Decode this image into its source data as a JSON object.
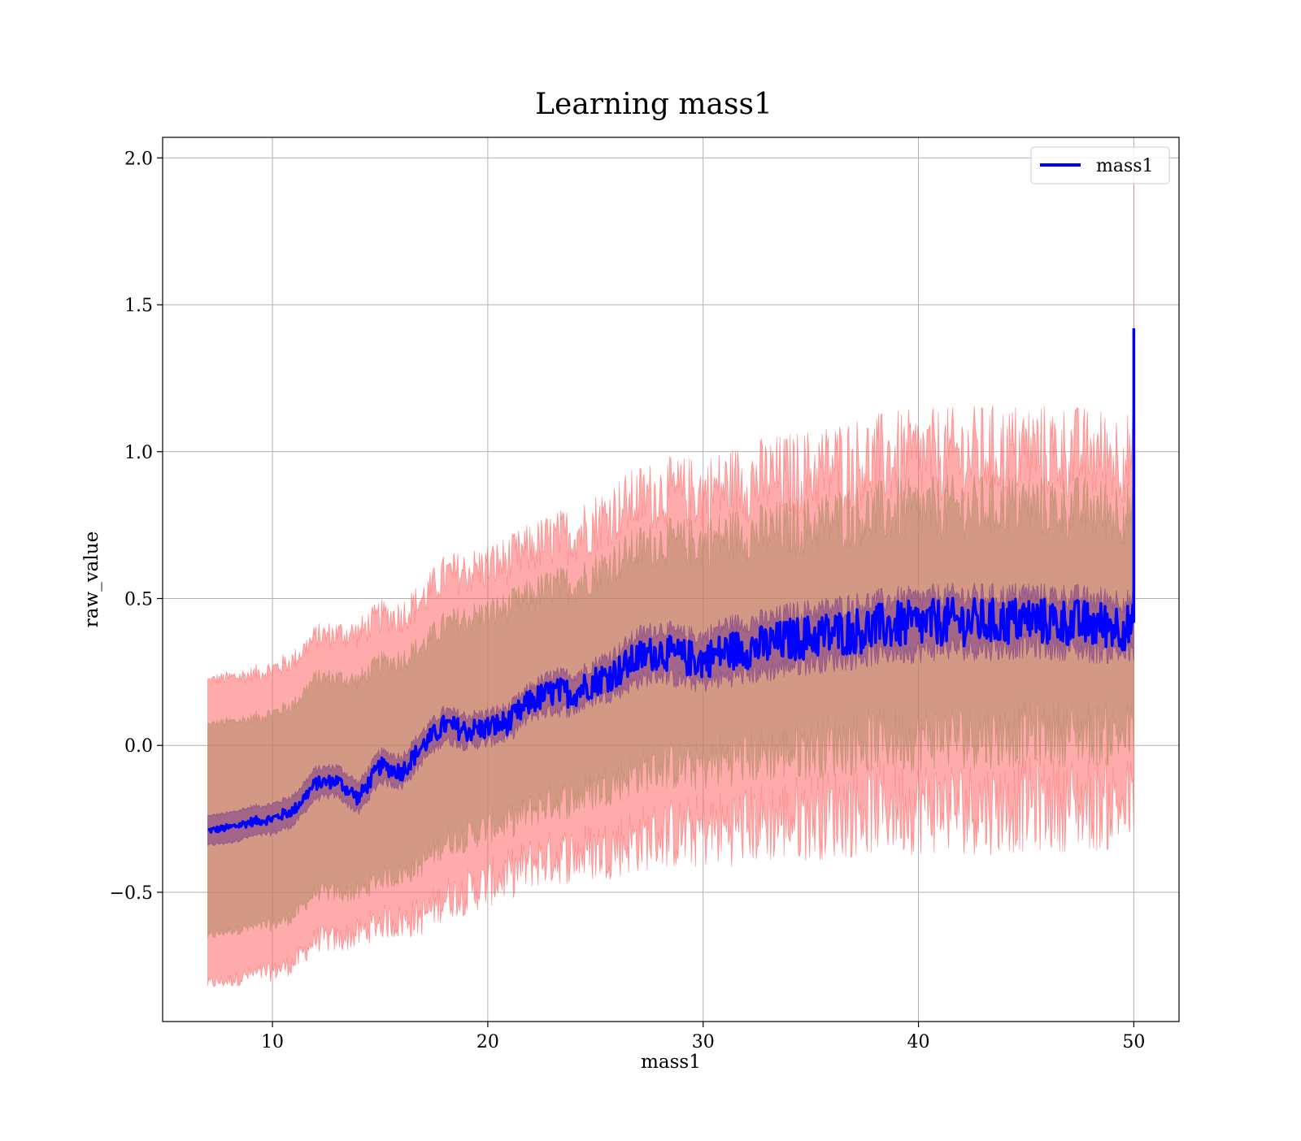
{
  "chart_data": {
    "type": "line",
    "title": "Learning mass1",
    "xlabel": "mass1",
    "ylabel": "raw_value",
    "xlim": [
      4.9,
      52.1
    ],
    "ylim": [
      -0.94,
      2.07
    ],
    "x_ticks": [
      10,
      20,
      30,
      40,
      50
    ],
    "x_tick_labels": [
      "10",
      "20",
      "30",
      "40",
      "50"
    ],
    "y_ticks": [
      -0.5,
      0.0,
      0.5,
      1.0,
      1.5,
      2.0
    ],
    "y_tick_labels": [
      "−0.5",
      "0.0",
      "0.5",
      "1.0",
      "1.5",
      "2.0"
    ],
    "grid": true,
    "legend": {
      "position": "top-right",
      "entries": [
        "mass1"
      ]
    },
    "colors": {
      "line": "#0000ff",
      "outer_band": "#ff6666",
      "inner_band": "#b08a66",
      "core_band": "#7a3d8a",
      "grid": "#b0b0b0"
    },
    "series": [
      {
        "name": "mass1",
        "x": [
          7,
          8,
          9,
          10,
          11,
          12,
          13,
          14,
          15,
          16,
          17,
          18,
          19,
          20,
          21,
          22,
          23,
          24,
          25,
          26,
          27,
          28,
          29,
          30,
          31,
          32,
          33,
          34,
          35,
          36,
          37,
          38,
          39,
          40,
          41,
          42,
          43,
          44,
          45,
          46,
          47,
          48,
          49,
          50
        ],
        "y": [
          -0.29,
          -0.28,
          -0.26,
          -0.25,
          -0.22,
          -0.13,
          -0.12,
          -0.18,
          -0.07,
          -0.09,
          0.0,
          0.07,
          0.05,
          0.06,
          0.08,
          0.15,
          0.18,
          0.18,
          0.22,
          0.25,
          0.3,
          0.32,
          0.3,
          0.29,
          0.32,
          0.33,
          0.34,
          0.36,
          0.37,
          0.38,
          0.39,
          0.4,
          0.41,
          0.41,
          0.42,
          0.42,
          0.42,
          0.42,
          0.43,
          0.42,
          0.42,
          0.41,
          0.41,
          0.4
        ]
      }
    ],
    "bands": [
      {
        "level": "outer",
        "x": [
          7,
          8,
          9,
          10,
          11,
          12,
          13,
          14,
          15,
          16,
          17,
          18,
          19,
          20,
          21,
          22,
          23,
          24,
          25,
          26,
          27,
          28,
          29,
          30,
          31,
          32,
          33,
          34,
          35,
          36,
          37,
          38,
          39,
          40,
          41,
          42,
          43,
          44,
          45,
          46,
          47,
          48,
          49,
          50
        ],
        "lower": [
          -0.81,
          -0.8,
          -0.78,
          -0.77,
          -0.74,
          -0.66,
          -0.66,
          -0.64,
          -0.6,
          -0.6,
          -0.58,
          -0.52,
          -0.5,
          -0.47,
          -0.44,
          -0.4,
          -0.38,
          -0.37,
          -0.36,
          -0.34,
          -0.32,
          -0.3,
          -0.3,
          -0.29,
          -0.28,
          -0.27,
          -0.26,
          -0.25,
          -0.24,
          -0.23,
          -0.22,
          -0.21,
          -0.21,
          -0.21,
          -0.21,
          -0.21,
          -0.21,
          -0.21,
          -0.2,
          -0.2,
          -0.2,
          -0.2,
          -0.2,
          -0.2
        ],
        "upper": [
          0.22,
          0.23,
          0.24,
          0.26,
          0.29,
          0.37,
          0.38,
          0.38,
          0.44,
          0.44,
          0.5,
          0.58,
          0.59,
          0.61,
          0.63,
          0.67,
          0.7,
          0.72,
          0.76,
          0.8,
          0.84,
          0.86,
          0.86,
          0.86,
          0.88,
          0.9,
          0.91,
          0.92,
          0.93,
          0.95,
          0.96,
          0.97,
          0.98,
          0.98,
          0.99,
          0.99,
          1.0,
          1.0,
          1.01,
          1.0,
          1.0,
          0.99,
          0.99,
          0.98
        ]
      },
      {
        "level": "inner",
        "x": [
          7,
          8,
          9,
          10,
          11,
          12,
          13,
          14,
          15,
          16,
          17,
          18,
          19,
          20,
          21,
          22,
          23,
          24,
          25,
          26,
          27,
          28,
          29,
          30,
          31,
          32,
          33,
          34,
          35,
          36,
          37,
          38,
          39,
          40,
          41,
          42,
          43,
          44,
          45,
          46,
          47,
          48,
          49,
          50
        ],
        "lower": [
          -0.65,
          -0.63,
          -0.62,
          -0.61,
          -0.58,
          -0.5,
          -0.5,
          -0.5,
          -0.45,
          -0.44,
          -0.4,
          -0.33,
          -0.31,
          -0.28,
          -0.26,
          -0.22,
          -0.19,
          -0.18,
          -0.15,
          -0.12,
          -0.09,
          -0.07,
          -0.07,
          -0.07,
          -0.05,
          -0.04,
          -0.03,
          -0.02,
          -0.01,
          0.0,
          0.01,
          0.02,
          0.02,
          0.02,
          0.03,
          0.03,
          0.03,
          0.03,
          0.04,
          0.04,
          0.04,
          0.04,
          0.04,
          0.04
        ],
        "upper": [
          0.07,
          0.08,
          0.09,
          0.11,
          0.14,
          0.23,
          0.23,
          0.22,
          0.28,
          0.29,
          0.34,
          0.41,
          0.43,
          0.45,
          0.47,
          0.51,
          0.54,
          0.55,
          0.59,
          0.63,
          0.67,
          0.69,
          0.69,
          0.69,
          0.71,
          0.72,
          0.73,
          0.74,
          0.75,
          0.77,
          0.78,
          0.79,
          0.8,
          0.8,
          0.81,
          0.81,
          0.81,
          0.82,
          0.82,
          0.81,
          0.81,
          0.8,
          0.8,
          0.79
        ]
      },
      {
        "level": "core",
        "x": [
          7,
          8,
          9,
          10,
          11,
          12,
          13,
          14,
          15,
          16,
          17,
          18,
          19,
          20,
          21,
          22,
          23,
          24,
          25,
          26,
          27,
          28,
          29,
          30,
          31,
          32,
          33,
          34,
          35,
          36,
          37,
          38,
          39,
          40,
          41,
          42,
          43,
          44,
          45,
          46,
          47,
          48,
          49,
          50
        ],
        "lower": [
          -0.34,
          -0.33,
          -0.31,
          -0.3,
          -0.27,
          -0.18,
          -0.17,
          -0.23,
          -0.12,
          -0.14,
          -0.05,
          0.02,
          0.0,
          0.01,
          0.03,
          0.1,
          0.12,
          0.12,
          0.16,
          0.18,
          0.22,
          0.24,
          0.22,
          0.21,
          0.23,
          0.24,
          0.25,
          0.27,
          0.28,
          0.29,
          0.3,
          0.31,
          0.32,
          0.32,
          0.33,
          0.33,
          0.33,
          0.33,
          0.34,
          0.33,
          0.33,
          0.32,
          0.32,
          0.31
        ],
        "upper": [
          -0.24,
          -0.23,
          -0.21,
          -0.2,
          -0.17,
          -0.08,
          -0.07,
          -0.13,
          -0.02,
          -0.04,
          0.05,
          0.12,
          0.1,
          0.11,
          0.13,
          0.2,
          0.24,
          0.24,
          0.28,
          0.32,
          0.38,
          0.4,
          0.38,
          0.37,
          0.41,
          0.42,
          0.43,
          0.45,
          0.46,
          0.47,
          0.48,
          0.49,
          0.5,
          0.5,
          0.51,
          0.51,
          0.51,
          0.51,
          0.52,
          0.51,
          0.51,
          0.5,
          0.5,
          0.49
        ]
      }
    ],
    "end_spike": {
      "x": 50,
      "line_max": 1.42,
      "band_max": 1.95
    }
  }
}
